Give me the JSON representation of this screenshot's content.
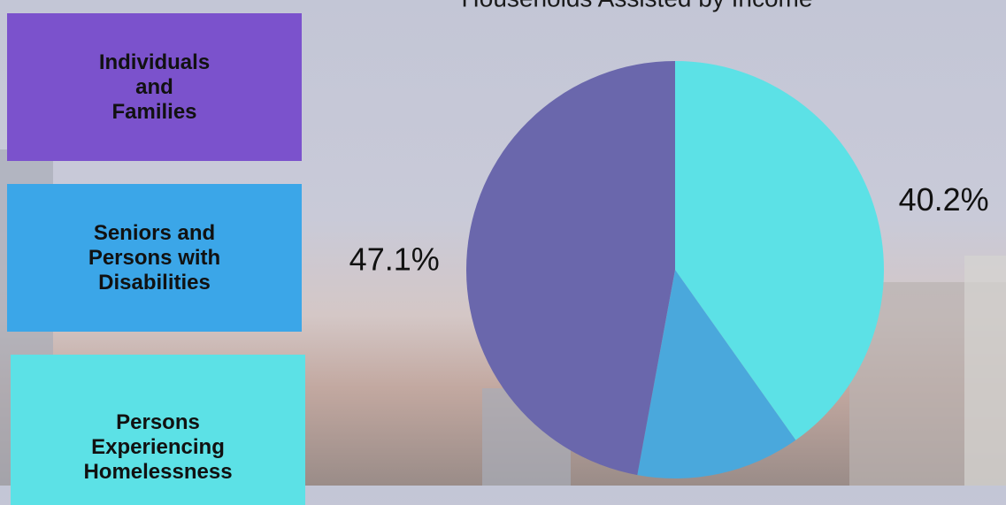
{
  "chart_data": {
    "type": "pie",
    "title": "Households Assisted by Income",
    "categories": [
      "Persons\nExperiencing\nHomelessness",
      "Seniors and\nPersons with\nDisabilities",
      "Individuals\nand\nFamilies"
    ],
    "values": [
      40.2,
      12.7,
      47.1
    ],
    "value_labels": [
      "40.2%",
      null,
      "47.1%"
    ],
    "colors": [
      "#5ce1e6",
      "#4aa8dc",
      "#6a67ac"
    ],
    "legend_order": [
      2,
      1,
      0
    ],
    "legend_colors": [
      "#5ce1e6",
      "#3ba6e8",
      "#7b52cc"
    ]
  }
}
